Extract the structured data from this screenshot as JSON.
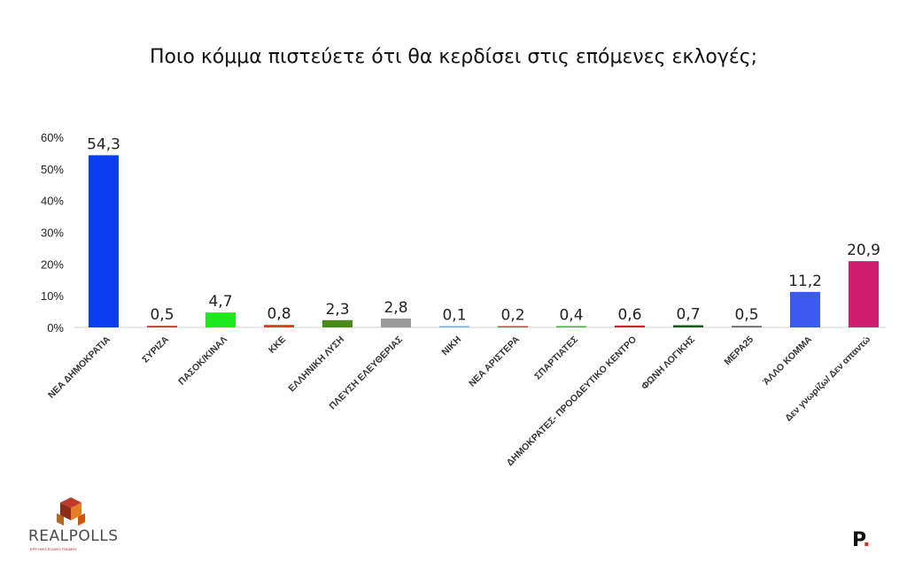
{
  "title": "Ποιο κόμμα πιστεύετε ότι θα κερδίσει στις επόμενες εκλογές;",
  "branding": {
    "left_logo_text": "REALPOLLS",
    "left_logo_tagline": "ΕΡΕΥΝΕΣ ΚΟΙΝΗΣ ΓΝΩΜΗΣ",
    "right_logo_text": "P",
    "right_logo_dot": "."
  },
  "chart_data": {
    "type": "bar",
    "title": "Ποιο κόμμα πιστεύετε ότι θα κερδίσει στις επόμενες εκλογές;",
    "xlabel": "",
    "ylabel": "",
    "ylim": [
      0,
      60
    ],
    "yticks": [
      "0%",
      "10%",
      "20%",
      "30%",
      "40%",
      "50%",
      "60%"
    ],
    "grid": false,
    "legend": "none",
    "categories": [
      "ΝΕΑ ΔΗΜΟΚΡΑΤΙΑ",
      "ΣΥΡΙΖΑ",
      "ΠΑΣΟΚ/ΚΙΝΑΛ",
      "ΚΚΕ",
      "ΕΛΛΗΝΙΚΗ ΛΥΣΗ",
      "ΠΛΕΥΣΗ ΕΛΕΥΘΕΡΙΑΣ",
      "ΝΙΚΗ",
      "ΝΕΑ ΑΡΙΣΤΕΡΑ",
      "ΣΠΑΡΤΙΑΤΕΣ",
      "ΔΗΜΟΚΡΑΤΕΣ-  ΠΡΟΟΔΕΥΤΙΚΟ ΚΕΝΤΡΟ",
      "ΦΩΝΗ ΛΟΓΙΚΗΣ",
      "ΜΕΡΑ25",
      "ΆΛΛΟ ΚΟΜΜΑ",
      "Δεν γνωρίζω/ Δεν απαντώ"
    ],
    "values": [
      54.3,
      0.5,
      4.7,
      0.8,
      2.3,
      2.8,
      0.1,
      0.2,
      0.4,
      0.6,
      0.7,
      0.5,
      11.2,
      20.9
    ],
    "value_labels": [
      "54,3",
      "0,5",
      "4,7",
      "0,8",
      "2,3",
      "2,8",
      "0,1",
      "0,2",
      "0,4",
      "0,6",
      "0,7",
      "0,5",
      "11,2",
      "20,9"
    ],
    "colors": [
      "#0a3ff0",
      "#c0392b",
      "#1ee81e",
      "#e03c28",
      "#4a8a1c",
      "#9a9a9a",
      "#7ab0d8",
      "#d04040",
      "#3cb43c",
      "#c0282d",
      "#1e5a1e",
      "#6a6a6a",
      "#3c5af0",
      "#d21e6e"
    ]
  }
}
